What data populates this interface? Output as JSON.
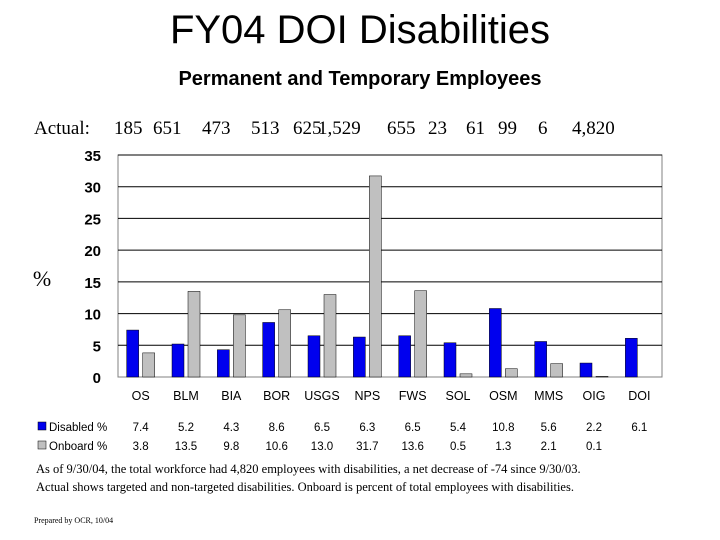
{
  "title": "FY04 DOI Disabilities",
  "subtitle": "Permanent and Temporary Employees",
  "actual_label": "Actual:",
  "actual_values": [
    "185",
    "651",
    "473",
    "513",
    "625",
    "1,529",
    "655",
    "23",
    "61",
    "99",
    "6",
    "4,820"
  ],
  "footnote_line1": "As of 9/30/04, the total workforce had 4,820 employees with disabilities, a net decrease of -74 since 9/30/03.",
  "footnote_line2": "Actual shows targeted and non-targeted disabilities.  Onboard is percent of total employees with disabilities.",
  "prepared_by": "Prepared by OCR, 10/04",
  "chart_data": {
    "type": "bar",
    "ylabel": "%",
    "ylim": [
      0,
      35
    ],
    "yticks": [
      "0",
      "5",
      "10",
      "15",
      "20",
      "25",
      "30",
      "35"
    ],
    "categories": [
      "OS",
      "BLM",
      "BIA",
      "BOR",
      "USGS",
      "NPS",
      "FWS",
      "SOL",
      "OSM",
      "MMS",
      "OIG",
      "DOI"
    ],
    "series": [
      {
        "name": "Disabled %",
        "color": "#0000ee",
        "values": [
          7.4,
          5.2,
          4.3,
          8.6,
          6.5,
          6.3,
          6.5,
          5.4,
          10.8,
          5.6,
          2.2,
          6.1
        ],
        "labels": [
          "7.4",
          "5.2",
          "4.3",
          "8.6",
          "6.5",
          "6.3",
          "6.5",
          "5.4",
          "10.8",
          "5.6",
          "2.2",
          "6.1"
        ]
      },
      {
        "name": "Onboard %",
        "color": "#c0c0c0",
        "values": [
          3.8,
          13.5,
          9.8,
          10.6,
          13.0,
          31.7,
          13.6,
          0.5,
          1.3,
          2.1,
          0.1,
          null
        ],
        "labels": [
          "3.8",
          "13.5",
          "9.8",
          "10.6",
          "13.0",
          "31.7",
          "13.6",
          "0.5",
          "1.3",
          "2.1",
          "0.1",
          ""
        ]
      }
    ],
    "grid": true,
    "legend": "data-table-below"
  }
}
